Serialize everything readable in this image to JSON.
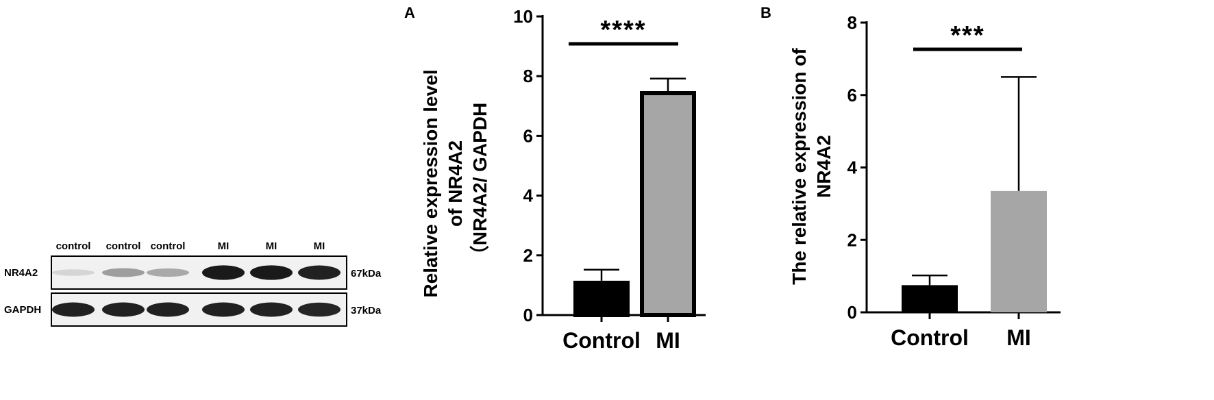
{
  "blot": {
    "lane_labels": [
      "control",
      "control",
      "control",
      "MI",
      "MI",
      "MI"
    ],
    "rows": [
      {
        "name": "NR4A2",
        "size": "67kDa",
        "band_intensity": [
          0.1,
          0.35,
          0.3,
          0.95,
          0.95,
          0.92
        ]
      },
      {
        "name": "GAPDH",
        "size": "37kDa",
        "band_intensity": [
          0.92,
          0.92,
          0.92,
          0.92,
          0.92,
          0.9
        ]
      }
    ]
  },
  "chart_data": [
    {
      "type": "bar",
      "panel_label": "A",
      "categories": [
        "Control",
        "MI"
      ],
      "values": [
        1.15,
        7.5
      ],
      "error_upper": [
        1.52,
        7.92
      ],
      "bar_colors": [
        "#000000",
        "#a6a6a6"
      ],
      "bar_outline": "#000000",
      "ylabel_lines": [
        "Relative expression level",
        "of NR4A2",
        "（NR4A2/ GAPDH"
      ],
      "ylim": [
        0,
        10
      ],
      "yticks": [
        "0",
        "2",
        "4",
        "6",
        "8",
        "10"
      ],
      "significance": "****",
      "grid": false
    },
    {
      "type": "bar",
      "panel_label": "B",
      "categories": [
        "Control",
        "MI"
      ],
      "values": [
        0.75,
        3.35
      ],
      "error_upper": [
        1.02,
        6.5
      ],
      "bar_colors": [
        "#000000",
        "#a6a6a6"
      ],
      "bar_outline": "none",
      "ylabel_lines": [
        "The relative expression of",
        "NR4A2"
      ],
      "ylim": [
        0,
        8
      ],
      "yticks": [
        "0",
        "2",
        "4",
        "6",
        "8"
      ],
      "significance": "***",
      "grid": false
    }
  ]
}
